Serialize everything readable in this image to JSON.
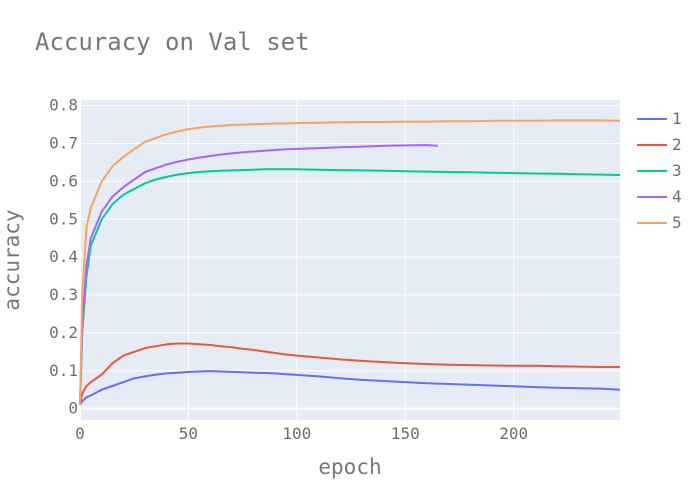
{
  "chart_data": {
    "type": "line",
    "title": "Accuracy on Val set",
    "xlabel": "epoch",
    "ylabel": "accuracy",
    "xlim": [
      0,
      249
    ],
    "ylim": [
      -0.03,
      0.815
    ],
    "x_ticks": [
      0,
      50,
      100,
      150,
      200
    ],
    "x_tick_labels": [
      "0",
      "50",
      "100",
      "150",
      "200"
    ],
    "y_ticks": [
      0,
      0.1,
      0.2,
      0.3,
      0.4,
      0.5,
      0.6,
      0.7,
      0.8
    ],
    "y_tick_labels": [
      "0",
      "0.1",
      "0.2",
      "0.3",
      "0.4",
      "0.5",
      "0.6",
      "0.7",
      "0.8"
    ],
    "grid": true,
    "legend_position": "right",
    "plot_background": "#e5ecf6",
    "series": [
      {
        "name": "1",
        "color": "#636efa",
        "x": [
          0,
          1,
          3,
          5,
          10,
          15,
          20,
          25,
          30,
          35,
          40,
          45,
          50,
          55,
          60,
          65,
          70,
          75,
          80,
          85,
          90,
          95,
          100,
          110,
          120,
          130,
          140,
          150,
          160,
          170,
          180,
          190,
          200,
          210,
          220,
          230,
          240,
          249
        ],
        "y": [
          0.01,
          0.02,
          0.03,
          0.035,
          0.05,
          0.06,
          0.07,
          0.08,
          0.085,
          0.09,
          0.093,
          0.095,
          0.097,
          0.098,
          0.099,
          0.098,
          0.097,
          0.096,
          0.095,
          0.094,
          0.093,
          0.091,
          0.089,
          0.085,
          0.08,
          0.076,
          0.073,
          0.07,
          0.067,
          0.065,
          0.063,
          0.061,
          0.059,
          0.057,
          0.055,
          0.054,
          0.053,
          0.05
        ]
      },
      {
        "name": "2",
        "color": "#ef553b",
        "x": [
          0,
          1,
          3,
          5,
          10,
          15,
          20,
          25,
          30,
          35,
          40,
          45,
          50,
          55,
          60,
          65,
          70,
          75,
          80,
          85,
          90,
          95,
          100,
          110,
          120,
          130,
          140,
          150,
          160,
          170,
          180,
          190,
          200,
          210,
          220,
          230,
          240,
          249
        ],
        "y": [
          0.01,
          0.04,
          0.06,
          0.07,
          0.09,
          0.12,
          0.14,
          0.15,
          0.16,
          0.165,
          0.17,
          0.172,
          0.172,
          0.17,
          0.168,
          0.165,
          0.162,
          0.158,
          0.155,
          0.151,
          0.147,
          0.143,
          0.14,
          0.135,
          0.13,
          0.126,
          0.123,
          0.12,
          0.118,
          0.116,
          0.115,
          0.114,
          0.113,
          0.113,
          0.112,
          0.111,
          0.11,
          0.11
        ]
      },
      {
        "name": "3",
        "color": "#00cc96",
        "x": [
          0,
          1,
          3,
          5,
          10,
          15,
          20,
          25,
          30,
          35,
          40,
          45,
          50,
          55,
          60,
          65,
          70,
          75,
          80,
          85,
          90,
          95,
          100,
          110,
          120,
          130,
          140,
          150,
          160,
          170,
          180,
          190,
          200,
          210,
          220,
          230,
          240,
          249
        ],
        "y": [
          0.01,
          0.2,
          0.35,
          0.43,
          0.5,
          0.54,
          0.565,
          0.58,
          0.595,
          0.605,
          0.612,
          0.618,
          0.622,
          0.625,
          0.627,
          0.628,
          0.629,
          0.63,
          0.631,
          0.632,
          0.632,
          0.632,
          0.632,
          0.631,
          0.63,
          0.629,
          0.628,
          0.627,
          0.626,
          0.625,
          0.624,
          0.623,
          0.622,
          0.621,
          0.62,
          0.619,
          0.618,
          0.617
        ]
      },
      {
        "name": "4",
        "color": "#ab63fa",
        "x": [
          0,
          1,
          3,
          5,
          10,
          15,
          20,
          25,
          30,
          35,
          40,
          45,
          50,
          55,
          60,
          65,
          70,
          75,
          80,
          85,
          90,
          95,
          100,
          110,
          120,
          130,
          140,
          150,
          160,
          165
        ],
        "y": [
          0.01,
          0.22,
          0.38,
          0.45,
          0.52,
          0.56,
          0.585,
          0.605,
          0.625,
          0.635,
          0.645,
          0.652,
          0.658,
          0.663,
          0.667,
          0.671,
          0.674,
          0.677,
          0.679,
          0.681,
          0.683,
          0.685,
          0.686,
          0.688,
          0.69,
          0.692,
          0.694,
          0.695,
          0.696,
          0.694
        ]
      },
      {
        "name": "5",
        "color": "#ffa15a",
        "x": [
          0,
          1,
          3,
          5,
          10,
          15,
          20,
          25,
          30,
          35,
          40,
          45,
          50,
          55,
          60,
          65,
          70,
          75,
          80,
          85,
          90,
          95,
          100,
          110,
          120,
          130,
          140,
          150,
          160,
          170,
          180,
          190,
          200,
          210,
          220,
          230,
          240,
          249
        ],
        "y": [
          0.01,
          0.3,
          0.48,
          0.53,
          0.6,
          0.64,
          0.665,
          0.685,
          0.705,
          0.715,
          0.725,
          0.732,
          0.738,
          0.742,
          0.745,
          0.747,
          0.749,
          0.75,
          0.751,
          0.752,
          0.753,
          0.753,
          0.754,
          0.755,
          0.756,
          0.757,
          0.757,
          0.758,
          0.758,
          0.759,
          0.759,
          0.76,
          0.76,
          0.76,
          0.761,
          0.761,
          0.761,
          0.76
        ]
      }
    ]
  }
}
